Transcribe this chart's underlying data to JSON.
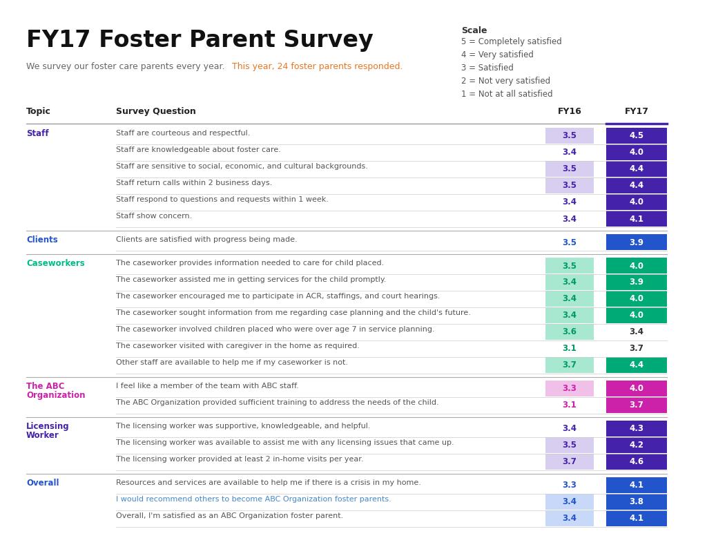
{
  "title": "FY17 Foster Parent Survey",
  "subtitle_plain": "We survey our foster care parents every year. ",
  "subtitle_highlight": "This year, 24 foster parents responded.",
  "subtitle_highlight_color": "#e87722",
  "scale_title": "Scale",
  "scale_items": [
    "5 = Completely satisfied",
    "4 = Very satisfied",
    "3 = Satisfied",
    "2 = Not very satisfied",
    "1 = Not at all satisfied"
  ],
  "col_topic": "Topic",
  "col_question": "Survey Question",
  "col_fy16": "FY16",
  "col_fy17": "FY17",
  "rows": [
    {
      "topic": "Staff",
      "question": "Staff are courteous and respectful.",
      "fy16": 3.5,
      "fy16_box": true,
      "fy17": 4.5,
      "fy17_box": true,
      "group": "Staff",
      "q_color": "#555555"
    },
    {
      "topic": "",
      "question": "Staff are knowledgeable about foster care.",
      "fy16": 3.4,
      "fy16_box": false,
      "fy17": 4.0,
      "fy17_box": true,
      "group": "Staff",
      "q_color": "#555555"
    },
    {
      "topic": "",
      "question": "Staff are sensitive to social, economic, and cultural backgrounds.",
      "fy16": 3.5,
      "fy16_box": true,
      "fy17": 4.4,
      "fy17_box": true,
      "group": "Staff",
      "q_color": "#555555"
    },
    {
      "topic": "",
      "question": "Staff return calls within 2 business days.",
      "fy16": 3.5,
      "fy16_box": true,
      "fy17": 4.4,
      "fy17_box": true,
      "group": "Staff",
      "q_color": "#555555"
    },
    {
      "topic": "",
      "question": "Staff respond to questions and requests within 1 week.",
      "fy16": 3.4,
      "fy16_box": false,
      "fy17": 4.0,
      "fy17_box": true,
      "group": "Staff",
      "q_color": "#555555"
    },
    {
      "topic": "",
      "question": "Staff show concern.",
      "fy16": 3.4,
      "fy16_box": false,
      "fy17": 4.1,
      "fy17_box": true,
      "group": "Staff",
      "q_color": "#555555"
    },
    {
      "topic": "Clients",
      "question": "Clients are satisfied with progress being made.",
      "fy16": 3.5,
      "fy16_box": false,
      "fy17": 3.9,
      "fy17_box": true,
      "group": "Clients",
      "q_color": "#555555"
    },
    {
      "topic": "Caseworkers",
      "question": "The caseworker provides information needed to care for child placed.",
      "fy16": 3.5,
      "fy16_box": true,
      "fy17": 4.0,
      "fy17_box": true,
      "group": "Caseworkers",
      "q_color": "#555555"
    },
    {
      "topic": "",
      "question": "The caseworker assisted me in getting services for the child promptly.",
      "fy16": 3.4,
      "fy16_box": true,
      "fy17": 3.9,
      "fy17_box": true,
      "group": "Caseworkers",
      "q_color": "#555555"
    },
    {
      "topic": "",
      "question": "The caseworker encouraged me to participate in ACR, staffings, and court hearings.",
      "fy16": 3.4,
      "fy16_box": true,
      "fy17": 4.0,
      "fy17_box": true,
      "group": "Caseworkers",
      "q_color": "#555555"
    },
    {
      "topic": "",
      "question": "The caseworker sought information from me regarding case planning and the child's future.",
      "fy16": 3.4,
      "fy16_box": true,
      "fy17": 4.0,
      "fy17_box": true,
      "group": "Caseworkers",
      "q_color": "#555555"
    },
    {
      "topic": "",
      "question": "The caseworker involved children placed who were over age 7 in service planning.",
      "fy16": 3.6,
      "fy16_box": true,
      "fy17": 3.4,
      "fy17_box": false,
      "group": "Caseworkers",
      "q_color": "#555555"
    },
    {
      "topic": "",
      "question": "The caseworker visited with caregiver in the home as required.",
      "fy16": 3.1,
      "fy16_box": false,
      "fy17": 3.7,
      "fy17_box": false,
      "group": "Caseworkers",
      "q_color": "#555555"
    },
    {
      "topic": "",
      "question": "Other staff are available to help me if my caseworker is not.",
      "fy16": 3.7,
      "fy16_box": true,
      "fy17": 4.4,
      "fy17_box": true,
      "group": "Caseworkers",
      "q_color": "#555555"
    },
    {
      "topic": "The ABC\nOrganization",
      "question": "I feel like a member of the team with ABC staff.",
      "fy16": 3.3,
      "fy16_box": true,
      "fy17": 4.0,
      "fy17_box": true,
      "group": "ABC",
      "q_color": "#555555"
    },
    {
      "topic": "",
      "question": "The ABC Organization provided sufficient training to address the needs of the child.",
      "fy16": 3.1,
      "fy16_box": false,
      "fy17": 3.7,
      "fy17_box": true,
      "group": "ABC",
      "q_color": "#555555"
    },
    {
      "topic": "Licensing\nWorker",
      "question": "The licensing worker was supportive, knowledgeable, and helpful.",
      "fy16": 3.4,
      "fy16_box": false,
      "fy17": 4.3,
      "fy17_box": true,
      "group": "Licensing",
      "q_color": "#555555"
    },
    {
      "topic": "",
      "question": "The licensing worker was available to assist me with any licensing issues that came up.",
      "fy16": 3.5,
      "fy16_box": true,
      "fy17": 4.2,
      "fy17_box": true,
      "group": "Licensing",
      "q_color": "#555555"
    },
    {
      "topic": "",
      "question": "The licensing worker provided at least 2 in-home visits per year.",
      "fy16": 3.7,
      "fy16_box": true,
      "fy17": 4.6,
      "fy17_box": true,
      "group": "Licensing",
      "q_color": "#555555"
    },
    {
      "topic": "Overall",
      "question": "Resources and services are available to help me if there is a crisis in my home.",
      "fy16": 3.3,
      "fy16_box": false,
      "fy17": 4.1,
      "fy17_box": true,
      "group": "Overall",
      "q_color": "#555555"
    },
    {
      "topic": "",
      "question": "I would recommend others to become ABC Organization foster parents.",
      "fy16": 3.4,
      "fy16_box": true,
      "fy17": 3.8,
      "fy17_box": true,
      "group": "Overall",
      "q_color": "#4488cc"
    },
    {
      "topic": "",
      "question": "Overall, I'm satisfied as an ABC Organization foster parent.",
      "fy16": 3.4,
      "fy16_box": true,
      "fy17": 4.1,
      "fy17_box": true,
      "group": "Overall",
      "q_color": "#555555"
    }
  ],
  "group_colors": {
    "Staff": {
      "topic_color": "#4422aa",
      "fy16_bg": "#d8cef0",
      "fy16_text": "#4422aa",
      "fy17_bg_dark": "#4422aa",
      "fy17_bg_mid": "#7755bb",
      "fy17_text": "#ffffff"
    },
    "Clients": {
      "topic_color": "#2255cc",
      "fy16_bg": "#c8d8f8",
      "fy16_text": "#2255cc",
      "fy17_bg_dark": "#2255cc",
      "fy17_bg_mid": "#4477dd",
      "fy17_text": "#ffffff"
    },
    "Caseworkers": {
      "topic_color": "#00bb88",
      "fy16_bg": "#a8e8d0",
      "fy16_text": "#009966",
      "fy17_bg_dark": "#00aa77",
      "fy17_bg_mid": "#44ccaa",
      "fy17_text": "#ffffff"
    },
    "ABC": {
      "topic_color": "#cc22aa",
      "fy16_bg": "#f0c0e8",
      "fy16_text": "#cc22aa",
      "fy17_bg_dark": "#cc22aa",
      "fy17_bg_mid": "#dd44bb",
      "fy17_text": "#ffffff"
    },
    "Licensing": {
      "topic_color": "#4422aa",
      "fy16_bg": "#d8cef0",
      "fy16_text": "#4422aa",
      "fy17_bg_dark": "#4422aa",
      "fy17_bg_mid": "#7755bb",
      "fy17_text": "#ffffff"
    },
    "Overall": {
      "topic_color": "#2255cc",
      "fy16_bg": "#c8d8f8",
      "fy16_text": "#2255cc",
      "fy17_bg_dark": "#2255cc",
      "fy17_bg_mid": "#4477dd",
      "fy17_text": "#ffffff"
    }
  },
  "background_color": "#ffffff",
  "row_line_color": "#cccccc",
  "group_sep_color": "#aaaaaa",
  "header_line_color": "#888888"
}
